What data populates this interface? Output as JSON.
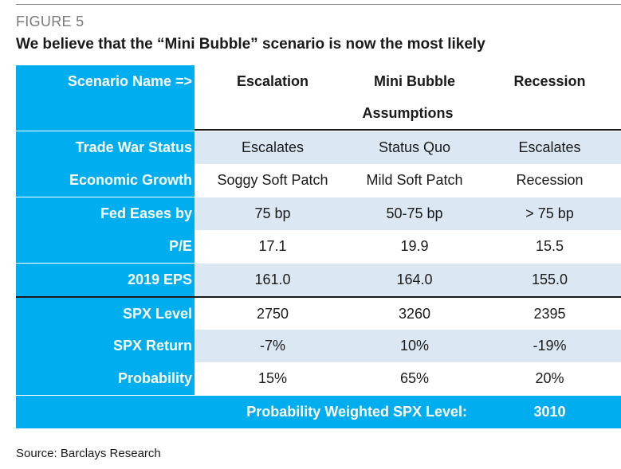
{
  "figure": {
    "label": "FIGURE 5",
    "title": "We believe that the “Mini Bubble” scenario is now the most likely"
  },
  "table": {
    "header": {
      "label": "Scenario Name =>",
      "columns": [
        "Escalation",
        "Mini Bubble",
        "Recession"
      ]
    },
    "assumptions_label": "Assumptions",
    "rows": [
      {
        "label": "Trade War Status",
        "values": [
          "Escalates",
          "Status Quo",
          "Escalates"
        ]
      },
      {
        "label": "Economic Growth",
        "values": [
          "Soggy Soft Patch",
          "Mild Soft Patch",
          "Recession"
        ]
      },
      {
        "label": "Fed Eases by",
        "values": [
          "75 bp",
          "50-75 bp",
          "> 75 bp"
        ]
      },
      {
        "label": "P/E",
        "values": [
          "17.1",
          "19.9",
          "15.5"
        ]
      },
      {
        "label": "2019 EPS",
        "values": [
          "161.0",
          "164.0",
          "155.0"
        ]
      },
      {
        "label": "SPX Level",
        "values": [
          "2750",
          "3260",
          "2395"
        ]
      },
      {
        "label": "SPX Return",
        "values": [
          "-7%",
          "10%",
          "-19%"
        ]
      },
      {
        "label": "Probability",
        "values": [
          "15%",
          "65%",
          "20%"
        ]
      }
    ],
    "footer": {
      "label": "Probability Weighted SPX Level:",
      "value": "3010"
    }
  },
  "source": "Source: Barclays Research",
  "colors": {
    "accent": "#00aeef",
    "alt_row": "#dbe7f3"
  }
}
